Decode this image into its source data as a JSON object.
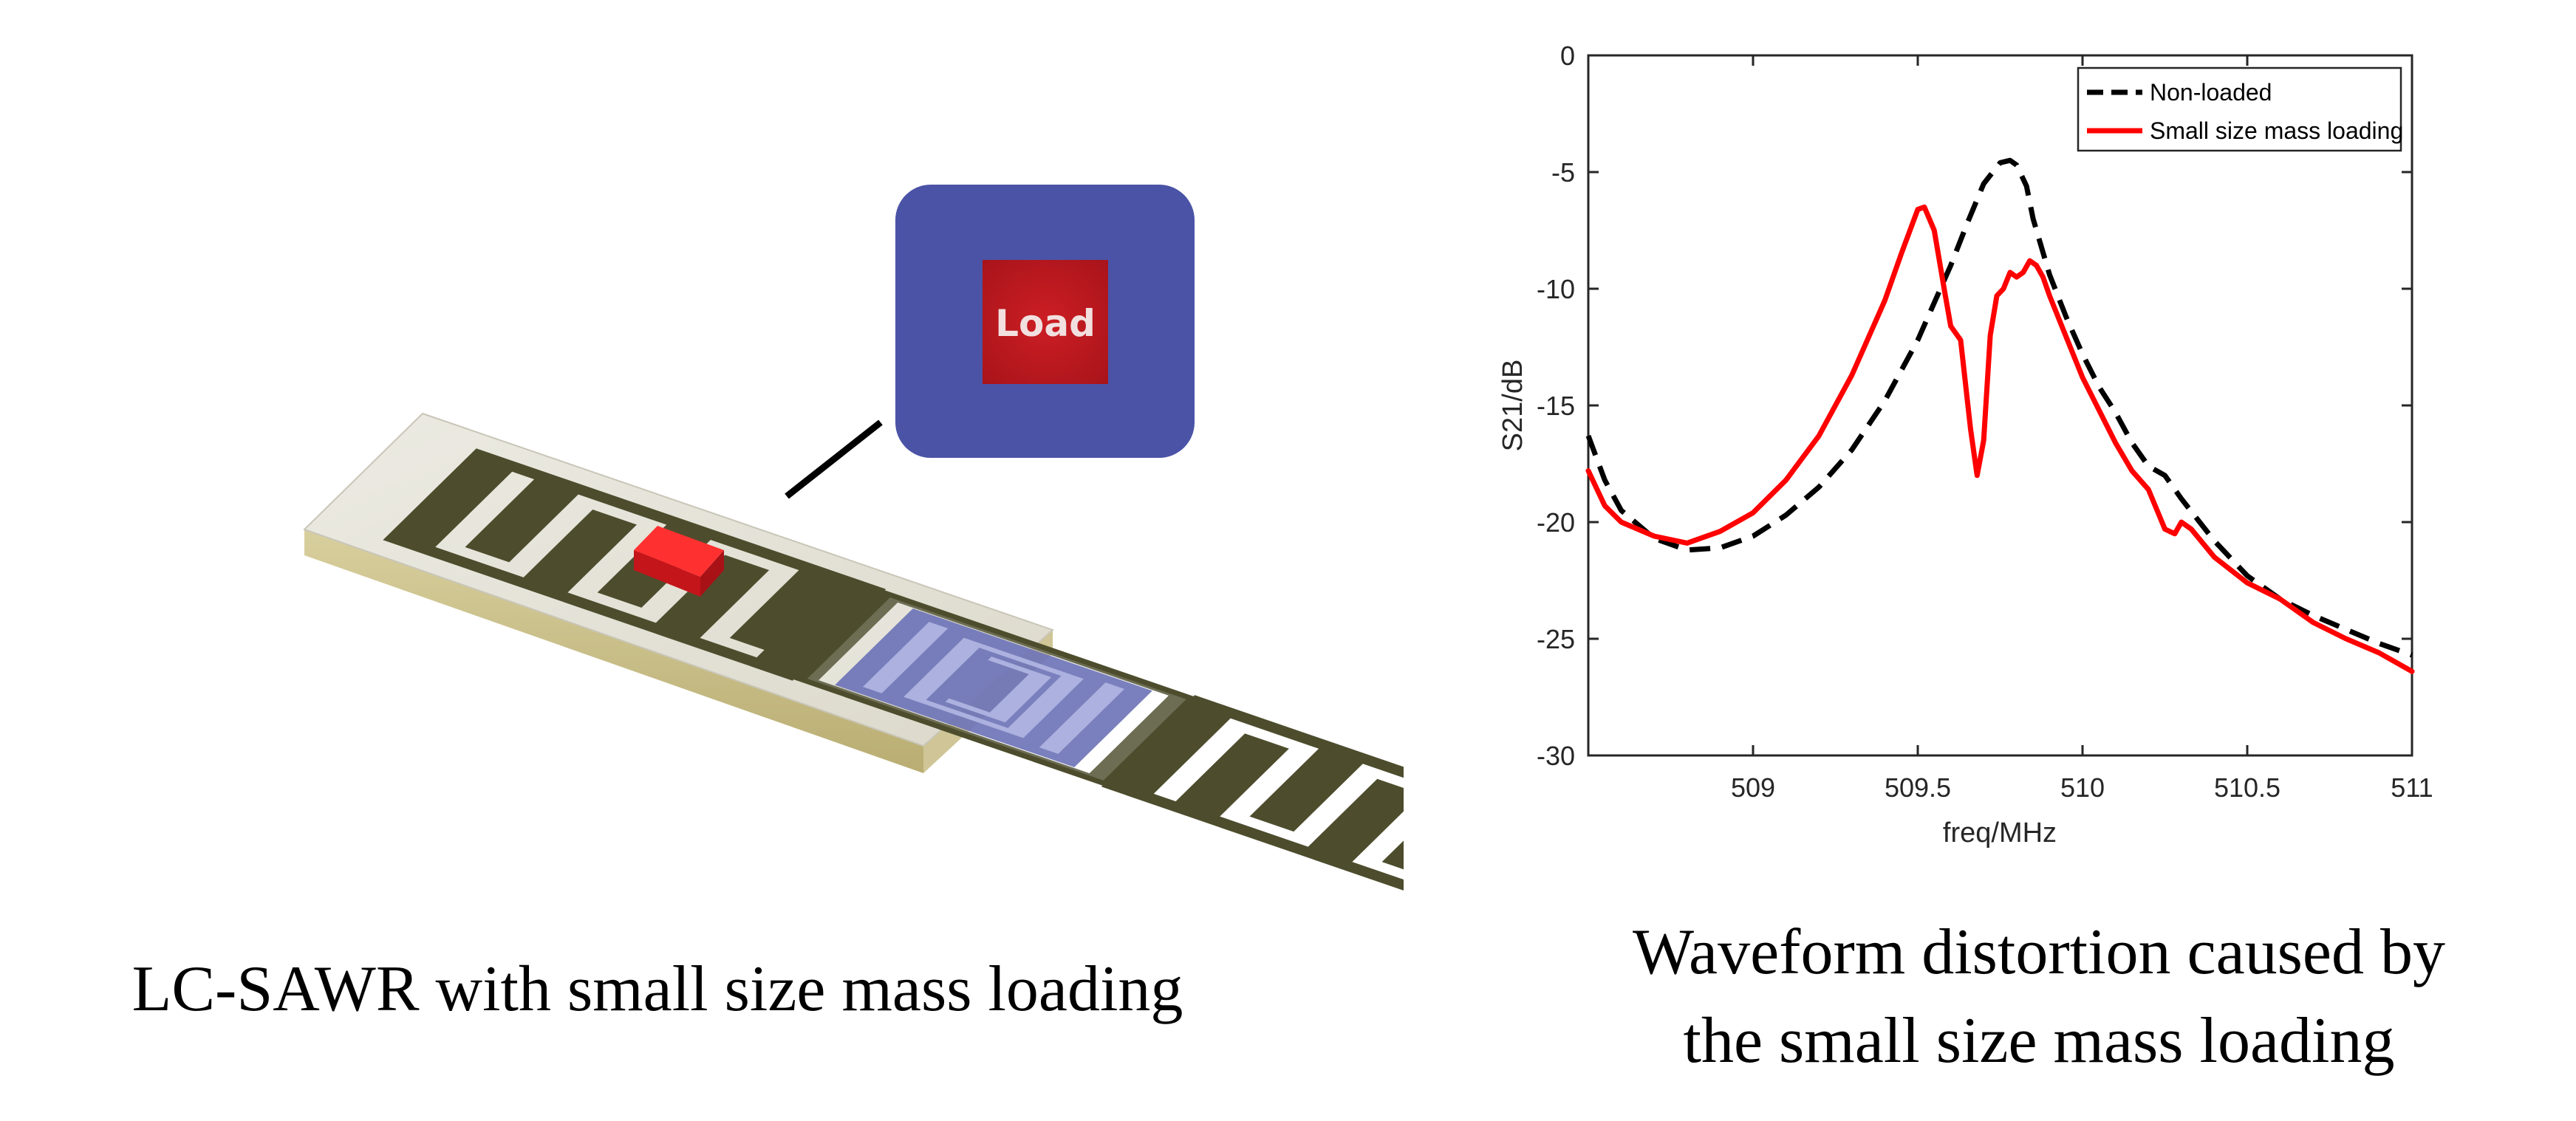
{
  "device": {
    "load_label": "Load"
  },
  "captions": {
    "left": "LC-SAWR with small size mass loading",
    "right_line1": "Waveform distortion caused by",
    "right_line2": "the small size mass loading"
  },
  "colors": {
    "substrate_top": "#e6e3d6",
    "substrate_side": "#c9bf8c",
    "electrode": "#4d4d2e",
    "blue_pad": "#4b53a6",
    "load_red": "#e0191e",
    "nonloaded_line": "#000000",
    "loaded_line": "#ff0000"
  },
  "chart_data": {
    "type": "line",
    "xlabel": "freq/MHz",
    "ylabel": "S21/dB",
    "xlim": [
      508.5,
      511
    ],
    "ylim": [
      -30,
      0
    ],
    "xticks": [
      509,
      509.5,
      510,
      510.5,
      511
    ],
    "xtick_labels": [
      "509",
      "509.5",
      "510",
      "510.5",
      "511"
    ],
    "yticks": [
      0,
      -5,
      -10,
      -15,
      -20,
      -25,
      -30
    ],
    "ytick_labels": [
      "0",
      "-5",
      "-10",
      "-15",
      "-20",
      "-25",
      "-30"
    ],
    "legend_position": "top-right",
    "series": [
      {
        "name": "Non-loaded",
        "style": "dashed",
        "color": "#000000",
        "x": [
          508.5,
          508.55,
          508.6,
          508.7,
          508.8,
          508.9,
          509.0,
          509.1,
          509.2,
          509.3,
          509.4,
          509.5,
          509.6,
          509.65,
          509.7,
          509.75,
          509.78,
          509.8,
          509.83,
          509.85,
          509.9,
          509.95,
          510.0,
          510.05,
          510.1,
          510.15,
          510.2,
          510.25,
          510.3,
          510.4,
          510.5,
          510.6,
          510.7,
          510.8,
          510.9,
          511.0
        ],
        "y": [
          -16.3,
          -18.2,
          -19.5,
          -20.7,
          -21.2,
          -21.1,
          -20.6,
          -19.7,
          -18.5,
          -16.9,
          -14.8,
          -12.2,
          -9.0,
          -7.2,
          -5.5,
          -4.6,
          -4.5,
          -4.7,
          -5.6,
          -7.0,
          -9.4,
          -11.2,
          -12.8,
          -14.2,
          -15.3,
          -16.6,
          -17.6,
          -18.0,
          -19.0,
          -20.8,
          -22.3,
          -23.3,
          -24.0,
          -24.6,
          -25.2,
          -25.7
        ]
      },
      {
        "name": "Small size mass loading",
        "style": "solid",
        "color": "#ff0000",
        "x": [
          508.5,
          508.55,
          508.6,
          508.7,
          508.8,
          508.9,
          509.0,
          509.1,
          509.2,
          509.3,
          509.4,
          509.45,
          509.5,
          509.52,
          509.55,
          509.58,
          509.6,
          509.63,
          509.66,
          509.68,
          509.7,
          509.72,
          509.74,
          509.76,
          509.78,
          509.8,
          509.82,
          509.84,
          509.86,
          509.88,
          509.9,
          510.0,
          510.1,
          510.15,
          510.2,
          510.25,
          510.28,
          510.3,
          510.33,
          510.4,
          510.5,
          510.6,
          510.7,
          510.8,
          510.9,
          511.0
        ],
        "y": [
          -17.8,
          -19.3,
          -20.0,
          -20.6,
          -20.9,
          -20.4,
          -19.6,
          -18.2,
          -16.3,
          -13.7,
          -10.5,
          -8.5,
          -6.6,
          -6.5,
          -7.5,
          -10.0,
          -11.6,
          -12.2,
          -16.0,
          -18.0,
          -16.5,
          -12.0,
          -10.3,
          -10.0,
          -9.3,
          -9.5,
          -9.3,
          -8.8,
          -9.0,
          -9.5,
          -10.3,
          -13.8,
          -16.6,
          -17.8,
          -18.6,
          -20.3,
          -20.5,
          -20.0,
          -20.3,
          -21.5,
          -22.6,
          -23.3,
          -24.3,
          -25.0,
          -25.6,
          -26.4
        ]
      }
    ]
  }
}
